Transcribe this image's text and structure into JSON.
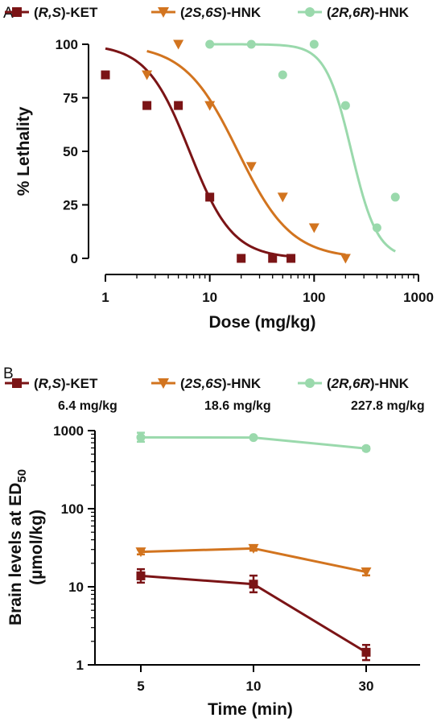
{
  "chart_data": [
    {
      "panel": "A",
      "type": "scatter",
      "xlabel": "Dose (mg/kg)",
      "ylabel": "% Lethality",
      "xscale": "log",
      "xlim": [
        1,
        1000
      ],
      "ylim": [
        0,
        100
      ],
      "x_ticks": [
        "1",
        "10",
        "100",
        "1000"
      ],
      "y_ticks": [
        "0",
        "25",
        "50",
        "75",
        "100"
      ],
      "legend_position": "top",
      "series": [
        {
          "prefix": "(",
          "italic": "R,S",
          "suffix": ")-KET",
          "color": "#7b1416",
          "marker": "square",
          "points": [
            [
              1,
              85.7
            ],
            [
              2.5,
              71.4
            ],
            [
              5,
              71.4
            ],
            [
              10,
              28.6
            ],
            [
              20,
              0
            ],
            [
              40,
              0
            ],
            [
              60,
              0
            ]
          ],
          "fit": {
            "top": 100,
            "bottom": 0,
            "ec50": 6.4,
            "hill": 2.1,
            "xmin": 1,
            "xmax": 60
          }
        },
        {
          "prefix": "(",
          "italic": "2S,6S",
          "suffix": ")-HNK",
          "color": "#d2741f",
          "marker": "triangle-down",
          "points": [
            [
              2.5,
              85.7
            ],
            [
              5,
              100
            ],
            [
              10,
              71.4
            ],
            [
              25,
              42.9
            ],
            [
              50,
              28.6
            ],
            [
              100,
              14.3
            ],
            [
              200,
              0
            ]
          ],
          "fit": {
            "top": 100,
            "bottom": 0,
            "ec50": 18.6,
            "hill": 1.7,
            "xmin": 2.5,
            "xmax": 200
          }
        },
        {
          "prefix": "(",
          "italic": "2R,6R",
          "suffix": ")-HNK",
          "color": "#9ad9ac",
          "marker": "circle",
          "points": [
            [
              10,
              100
            ],
            [
              25,
              100
            ],
            [
              50,
              85.7
            ],
            [
              100,
              100
            ],
            [
              200,
              71.4
            ],
            [
              400,
              14.3
            ],
            [
              600,
              28.6
            ]
          ],
          "fit": {
            "top": 100,
            "bottom": 0,
            "ec50": 227.8,
            "hill": 3.5,
            "xmin": 10,
            "xmax": 600
          }
        }
      ]
    },
    {
      "panel": "B",
      "type": "line",
      "xlabel": "Time (min)",
      "ylabel_line1_prefix": "Brain levels at ED",
      "ylabel_line1_sub": "50",
      "ylabel_line2": "(µmol/kg)",
      "yscale": "log",
      "ylim": [
        1,
        1000
      ],
      "categories": [
        "5",
        "10",
        "30"
      ],
      "y_ticks": [
        "1",
        "10",
        "100",
        "1000"
      ],
      "legend_position": "top",
      "series": [
        {
          "prefix": "(",
          "italic": "R,S",
          "suffix": ")-KET",
          "dose": "6.4 mg/kg",
          "color": "#7b1416",
          "marker": "square",
          "values": [
            13.8,
            10.8,
            1.45
          ],
          "err_low": [
            11.3,
            8.5,
            1.15
          ],
          "err_high": [
            16.8,
            13.9,
            1.8
          ]
        },
        {
          "prefix": "(",
          "italic": "2S,6S",
          "suffix": ")-HNK",
          "dose": "18.6 mg/kg",
          "color": "#d2741f",
          "marker": "triangle-down",
          "values": [
            28,
            31,
            15.5
          ],
          "err_low": [
            26,
            29,
            14
          ],
          "err_high": [
            30,
            33,
            17
          ]
        },
        {
          "prefix": "(",
          "italic": "2R,6R",
          "suffix": ")-HNK",
          "dose": "227.8 mg/kg",
          "color": "#9ad9ac",
          "marker": "circle",
          "values": [
            820,
            815,
            590
          ],
          "err_low": [
            720,
            790,
            560
          ],
          "err_high": [
            940,
            840,
            620
          ]
        }
      ]
    }
  ]
}
